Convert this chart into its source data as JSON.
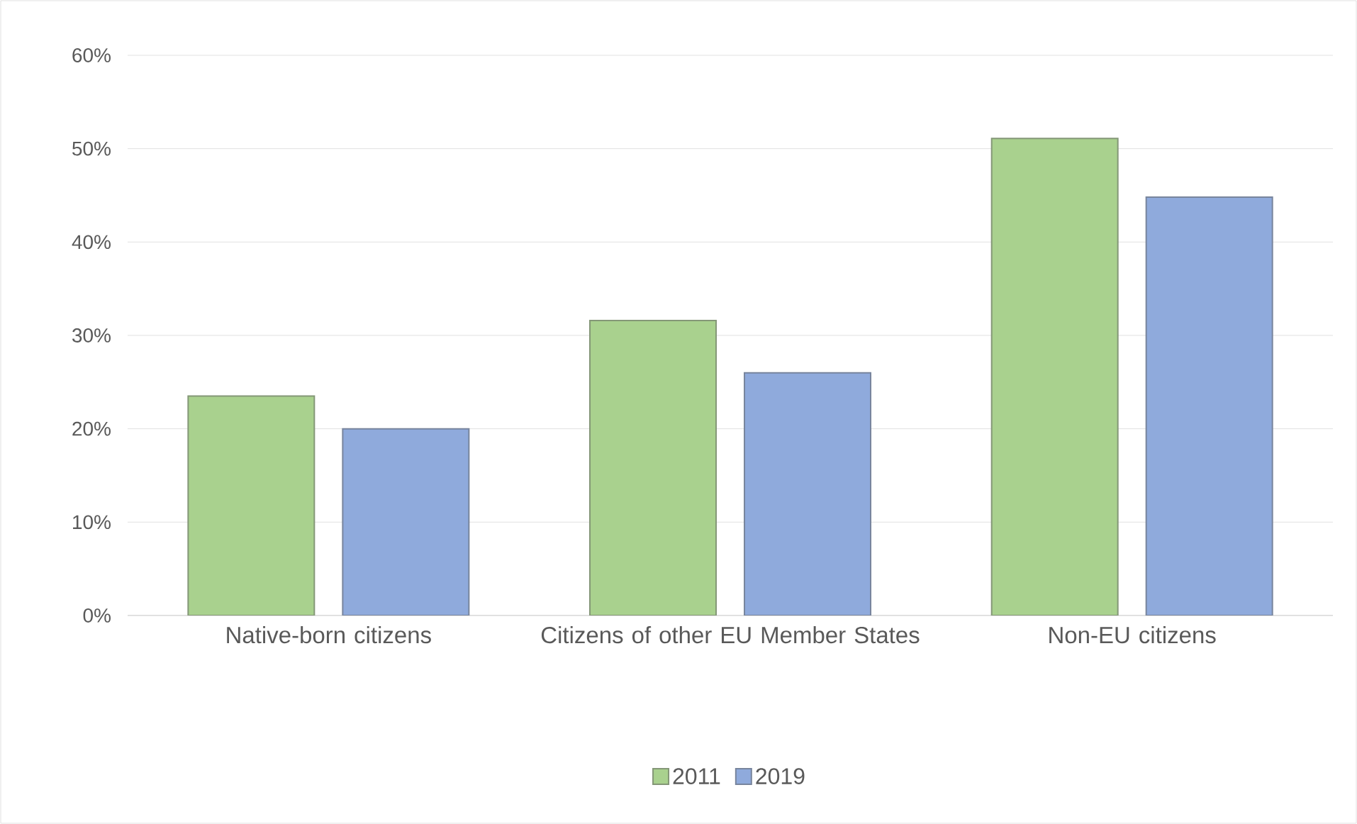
{
  "chart_data": {
    "type": "bar",
    "categories": [
      "Native-born citizens",
      "Citizens of other EU Member States",
      "Non-EU citizens"
    ],
    "series": [
      {
        "name": "2011",
        "color": "#a9d18e",
        "values": [
          23.5,
          31.6,
          51.1
        ]
      },
      {
        "name": "2019",
        "color": "#8faadc",
        "values": [
          20.0,
          26.0,
          44.8
        ]
      }
    ],
    "ylim": [
      0,
      60
    ],
    "yticks": [
      {
        "value": 0,
        "label": "0%"
      },
      {
        "value": 10,
        "label": "10%"
      },
      {
        "value": 20,
        "label": "20%"
      },
      {
        "value": 30,
        "label": "30%"
      },
      {
        "value": 40,
        "label": "40%"
      },
      {
        "value": 50,
        "label": "50%"
      },
      {
        "value": 60,
        "label": "60%"
      }
    ],
    "grid": "y",
    "legend": "bottom"
  }
}
